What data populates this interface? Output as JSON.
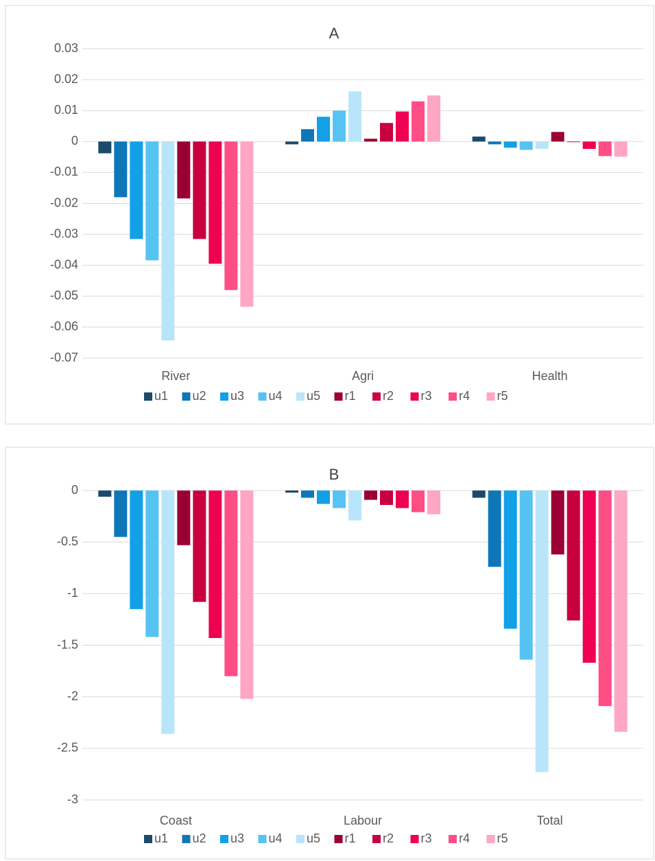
{
  "chart_data": [
    {
      "type": "bar",
      "title": "A",
      "categories": [
        "River",
        "Agri",
        "Health"
      ],
      "series": [
        {
          "name": "u1",
          "color": "#1b4a6b",
          "values": [
            -0.0038,
            -0.0009,
            0.0016
          ]
        },
        {
          "name": "u2",
          "color": "#0f77b8",
          "values": [
            -0.018,
            0.004,
            -0.0009
          ]
        },
        {
          "name": "u3",
          "color": "#12a0e6",
          "values": [
            -0.0315,
            0.008,
            -0.002
          ]
        },
        {
          "name": "u4",
          "color": "#56c3f3",
          "values": [
            -0.0384,
            0.01,
            -0.0027
          ]
        },
        {
          "name": "u5",
          "color": "#b9e5fa",
          "values": [
            -0.0643,
            0.0162,
            -0.0024
          ]
        },
        {
          "name": "r1",
          "color": "#9b0035",
          "values": [
            -0.0184,
            0.0009,
            0.0031
          ]
        },
        {
          "name": "r2",
          "color": "#c9003f",
          "values": [
            -0.0315,
            0.006,
            -0.0002
          ]
        },
        {
          "name": "r3",
          "color": "#ee0152",
          "values": [
            -0.0395,
            0.0097,
            -0.0024
          ]
        },
        {
          "name": "r4",
          "color": "#ff4d86",
          "values": [
            -0.048,
            0.013,
            -0.0047
          ]
        },
        {
          "name": "r5",
          "color": "#ffa6c4",
          "values": [
            -0.0534,
            0.0149,
            -0.0049
          ]
        }
      ],
      "ylim": [
        -0.07,
        0.03
      ],
      "yticks": [
        0.03,
        0.02,
        0.01,
        0,
        -0.01,
        -0.02,
        -0.03,
        -0.04,
        -0.05,
        -0.06,
        -0.07
      ],
      "grid": true,
      "legend": "bottom"
    },
    {
      "type": "bar",
      "title": "B",
      "categories": [
        "Coast",
        "Labour",
        "Total"
      ],
      "series": [
        {
          "name": "u1",
          "color": "#1b4a6b",
          "values": [
            -0.06,
            -0.02,
            -0.07
          ]
        },
        {
          "name": "u2",
          "color": "#0f77b8",
          "values": [
            -0.45,
            -0.07,
            -0.74
          ]
        },
        {
          "name": "u3",
          "color": "#12a0e6",
          "values": [
            -1.15,
            -0.13,
            -1.34
          ]
        },
        {
          "name": "u4",
          "color": "#56c3f3",
          "values": [
            -1.42,
            -0.17,
            -1.64
          ]
        },
        {
          "name": "u5",
          "color": "#b9e5fa",
          "values": [
            -2.36,
            -0.29,
            -2.73
          ]
        },
        {
          "name": "r1",
          "color": "#9b0035",
          "values": [
            -0.53,
            -0.09,
            -0.62
          ]
        },
        {
          "name": "r2",
          "color": "#c9003f",
          "values": [
            -1.08,
            -0.14,
            -1.26
          ]
        },
        {
          "name": "r3",
          "color": "#ee0152",
          "values": [
            -1.43,
            -0.17,
            -1.67
          ]
        },
        {
          "name": "r4",
          "color": "#ff4d86",
          "values": [
            -1.8,
            -0.21,
            -2.09
          ]
        },
        {
          "name": "r5",
          "color": "#ffa6c4",
          "values": [
            -2.02,
            -0.23,
            -2.34
          ]
        }
      ],
      "ylim": [
        -3,
        0
      ],
      "yticks": [
        0,
        -0.5,
        -1,
        -1.5,
        -2,
        -2.5,
        -3
      ],
      "grid": true,
      "legend": "bottom"
    }
  ]
}
